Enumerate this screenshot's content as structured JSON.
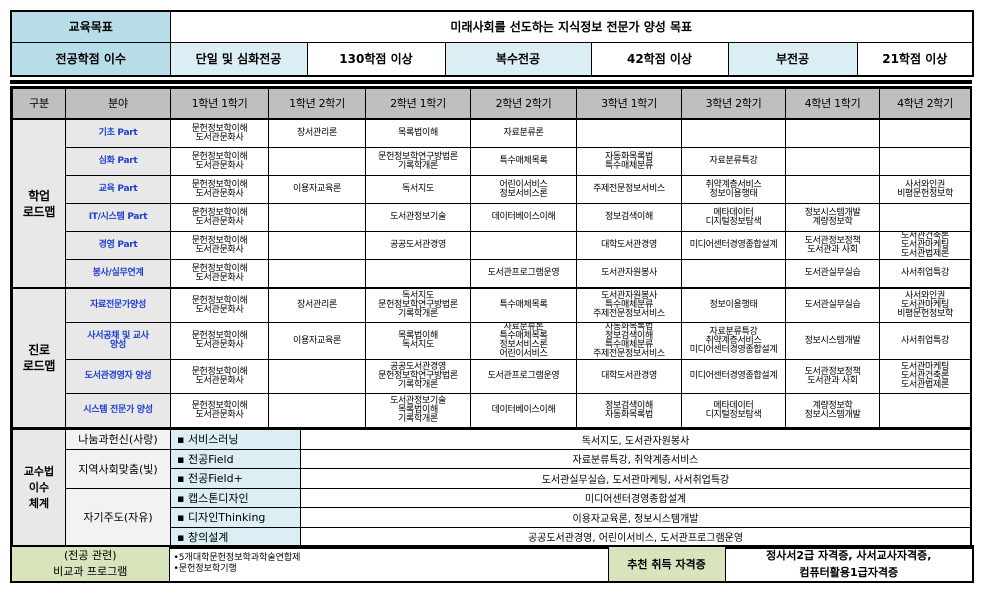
{
  "goal": {
    "label": "교육목표",
    "value": "미래사회를 선도하는 지식정보 전문가 양성 목표"
  },
  "credits": {
    "label": "전공학점 이수",
    "items": [
      {
        "type": "단일 및 심화전공",
        "value": "130학점 이상"
      },
      {
        "type": "복수전공",
        "value": "42학점 이상"
      },
      {
        "type": "부전공",
        "value": "21학점 이상"
      }
    ]
  },
  "headers": [
    "구분",
    "분야",
    "1학년 1학기",
    "1학년 2학기",
    "2학년 1학기",
    "2학년 2학기",
    "3학년 1학기",
    "3학년 2학기",
    "4학년 1학기",
    "4학년 2학기"
  ],
  "academic": {
    "label": "학업\n로드맵",
    "rows": [
      {
        "field": "기초 Part",
        "cells": [
          "문헌정보학이해\n도서관문화사",
          "장서관리론",
          "목록법이해",
          "자료분류론",
          "",
          "",
          "",
          ""
        ]
      },
      {
        "field": "심화 Part",
        "cells": [
          "문헌정보학이해\n도서관문화사",
          "",
          "문헌정보학연구방법론\n기록학개론",
          "특수매체목록",
          "자동화목록법\n특수매체분류",
          "자료분류특강",
          "",
          ""
        ]
      },
      {
        "field": "교육 Part",
        "cells": [
          "문헌정보학이해\n도서관문화사",
          "이용자교육론",
          "독서지도",
          "어린이서비스\n정보서비스론",
          "주제전문정보서비스",
          "취약계층서비스\n정보이용행태",
          "",
          "사서와인권\n비평문헌정보학"
        ]
      },
      {
        "field": "IT/시스템 Part",
        "cells": [
          "문헌정보학이해\n도서관문화사",
          "",
          "도서관정보기술",
          "데이터베이스이해",
          "정보검색이해",
          "메타데이터\n디지털정보탐색",
          "정보시스템개발\n계량정보학",
          ""
        ]
      },
      {
        "field": "경영 Part",
        "cells": [
          "문헌정보학이해\n도서관문화사",
          "",
          "공공도서관경영",
          "",
          "대학도서관경영",
          "미디어센터경영종합설계",
          "도서관정보정책\n도서관과 사회",
          "도서관건축론\n도서관마케팅\n도서관법제론"
        ]
      },
      {
        "field": "봉사/실무연계",
        "cells": [
          "문헌정보학이해\n도서관문화사",
          "",
          "",
          "도서관프로그램운영",
          "도서관자원봉사",
          "",
          "도서관실무실습",
          "사서취업특강"
        ]
      }
    ]
  },
  "career": {
    "label": "진로\n로드맵",
    "rows": [
      {
        "field": "자료전문가양성",
        "cells": [
          "문헌정보학이해\n도서관문화사",
          "장서관리론",
          "독서지도\n문헌정보학연구방법론\n기록학개론",
          "특수매체목록",
          "도서관자원봉사\n특수매체분류\n주제전문정보서비스",
          "정보이용행태",
          "도서관실무실습",
          "사서와인권\n도서관마케팅\n비평문헌정보학"
        ]
      },
      {
        "field": "사서공채 및 교사\n양성",
        "cells": [
          "문헌정보학이해\n도서관문화사",
          "이용자교육론",
          "목록법이해\n독서지도",
          "자료분류론\n특수매체목록\n정보서비스론\n어린이서비스",
          "자동화목록법\n정보검색이해\n특수매체분류\n주제전문정보서비스",
          "자료분류특강\n취약계층서비스\n미디어센터경영종합설계",
          "정보시스템개발",
          "사서취업특강"
        ]
      },
      {
        "field": "도서관경영자 양성",
        "cells": [
          "문헌정보학이해\n도서관문화사",
          "",
          "공공도서관경영\n문헌정보학연구방법론\n기록학개론",
          "도서관프로그램운영",
          "대학도서관경영",
          "미디어센터경영종합설계",
          "도서관정보정책\n도서관과 사회",
          "도서관마케팅\n도서관건축론\n도서관법제론"
        ]
      },
      {
        "field": "시스템 전문가 양성",
        "cells": [
          "문헌정보학이해\n도서관문화사",
          "",
          "도서관정보기술\n목록법이해\n기록학개론",
          "데이터베이스이해",
          "정보검색이해\n자동화목록법",
          "메타데이터\n디지털정보탐색",
          "계량정보학\n정보시스템개발",
          ""
        ]
      }
    ]
  },
  "teaching": {
    "label": "교수법\n이수\n체계",
    "groups": [
      {
        "name": "나눔과헌신(사랑)",
        "items": [
          {
            "label": "▪ 서비스러닝",
            "courses": "독서지도, 도서관자원봉사"
          }
        ]
      },
      {
        "name": "지역사회맞춤(빛)",
        "items": [
          {
            "label": "▪ 전공Field",
            "courses": "자료분류특강, 취약계층서비스"
          },
          {
            "label": "▪ 전공Field+",
            "courses": "도서관실무실습, 도서관마케팅, 사서취업특강"
          }
        ]
      },
      {
        "name": "자기주도(자유)",
        "items": [
          {
            "label": "▪ 캡스톤디자인",
            "courses": "미디어센터경영종합설계"
          },
          {
            "label": "▪ 디자인Thinking",
            "courses": "이용자교육론, 정보시스템개발"
          },
          {
            "label": "▪ 창의설계",
            "courses": "공공도서관경영, 어린이서비스, 도서관프로그램운영"
          }
        ]
      }
    ]
  },
  "extra": {
    "label": "(전공 관련)\n비교과 프로그램",
    "programs": "•5개대학문헌정보학과학술연합제\n•문헌정보학기행",
    "cert_label": "추천 취득 자격증",
    "certs": "정사서2급 자격증, 사서교사자격증,\n컴퓨터활용1급자격증"
  },
  "colors": {
    "header_dark": "#b7dde8",
    "header_light": "#daeef3",
    "grid_header": "#bfbfbf",
    "field_text": "#1f3fd0",
    "green": "#d7e4bc"
  }
}
